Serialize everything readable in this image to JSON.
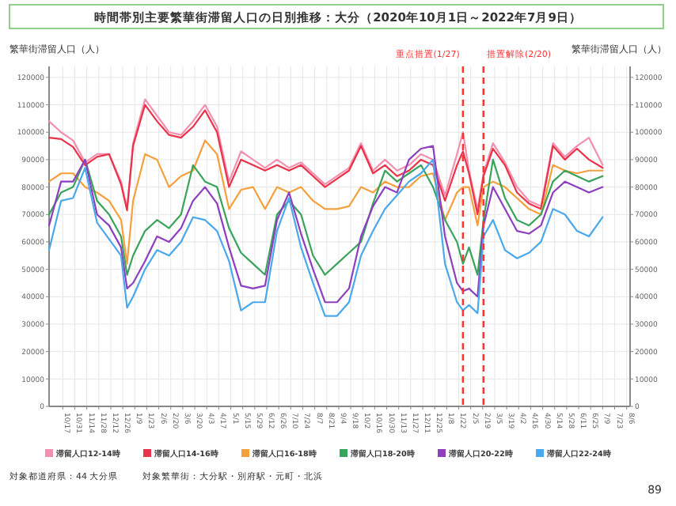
{
  "chart_data": {
    "type": "line",
    "title": "時間帯別主要繁華街滞留人口の日別推移：大分（2020年10月1日～2022年7月9日）",
    "ylabel": "繁華街滞留人口（人）",
    "y2label": "繁華街滞留人口（人）",
    "x": [
      "2020-10-01",
      "2020-10-15",
      "2020-10-29",
      "2020-11-12",
      "2020-11-26",
      "2020-12-10",
      "2020-12-24",
      "2020-12-31",
      "2021-01-07",
      "2021-01-21",
      "2021-02-04",
      "2021-02-18",
      "2021-03-04",
      "2021-03-18",
      "2021-04-01",
      "2021-04-15",
      "2021-04-29",
      "2021-05-13",
      "2021-05-27",
      "2021-06-10",
      "2021-06-24",
      "2021-07-08",
      "2021-07-22",
      "2021-08-05",
      "2021-08-19",
      "2021-09-02",
      "2021-09-16",
      "2021-09-30",
      "2021-10-14",
      "2021-10-28",
      "2021-11-11",
      "2021-11-25",
      "2021-12-09",
      "2021-12-23",
      "2022-01-06",
      "2022-01-20",
      "2022-01-27",
      "2022-02-03",
      "2022-02-13",
      "2022-02-20",
      "2022-03-03",
      "2022-03-17",
      "2022-03-31",
      "2022-04-14",
      "2022-04-28",
      "2022-05-12",
      "2022-05-26",
      "2022-06-09",
      "2022-06-23",
      "2022-07-09"
    ],
    "series": [
      {
        "name": "滞留人口12-14時",
        "color": "#f58fb0",
        "values": [
          104000,
          100000,
          97000,
          89000,
          92000,
          92000,
          82000,
          72000,
          96000,
          112000,
          106000,
          100000,
          99000,
          104000,
          110000,
          102000,
          82000,
          93000,
          90000,
          87000,
          90000,
          87000,
          89000,
          85000,
          81000,
          84000,
          87000,
          96000,
          86000,
          90000,
          86000,
          88000,
          92000,
          90000,
          77000,
          92000,
          100000,
          86000,
          72000,
          85000,
          96000,
          89000,
          80000,
          75000,
          73000,
          96000,
          91000,
          95000,
          98000,
          88000
        ]
      },
      {
        "name": "滞留人口14-16時",
        "color": "#e8334a",
        "values": [
          98000,
          97500,
          94600,
          88000,
          91000,
          92000,
          81000,
          71500,
          95000,
          110000,
          104000,
          99000,
          98000,
          102000,
          108000,
          100000,
          80000,
          90000,
          88000,
          86000,
          88000,
          86000,
          88000,
          84000,
          80000,
          83000,
          86000,
          95000,
          85000,
          88000,
          84000,
          86000,
          90000,
          88000,
          75000,
          88000,
          93000,
          85000,
          70000,
          84000,
          94000,
          88000,
          78000,
          74000,
          72000,
          95000,
          90000,
          94000,
          90000,
          87000
        ]
      },
      {
        "name": "滞留人口16-18時",
        "color": "#f5a03c",
        "values": [
          82000,
          85000,
          85000,
          80000,
          78000,
          75000,
          68000,
          52000,
          75000,
          92000,
          90000,
          80000,
          84000,
          86000,
          97000,
          92000,
          72000,
          79000,
          80000,
          72000,
          80000,
          78000,
          80000,
          75000,
          72000,
          72000,
          73000,
          80000,
          78000,
          82000,
          80000,
          80000,
          84000,
          85000,
          68000,
          78000,
          80000,
          80000,
          66000,
          80000,
          82000,
          80000,
          76000,
          72000,
          70000,
          88000,
          86000,
          85000,
          86000,
          86000
        ]
      },
      {
        "name": "滞留人口18-20時",
        "color": "#3aa35b",
        "values": [
          70000,
          78000,
          80000,
          90000,
          75000,
          70000,
          62000,
          48000,
          55000,
          64000,
          68000,
          65000,
          70000,
          88000,
          82000,
          80000,
          65000,
          56000,
          52000,
          48000,
          70000,
          75000,
          70000,
          55000,
          48000,
          52000,
          56000,
          60000,
          74000,
          86000,
          82000,
          85000,
          88000,
          80000,
          68000,
          60000,
          52000,
          58000,
          48000,
          68000,
          90000,
          76000,
          68000,
          66000,
          70000,
          82000,
          86000,
          84000,
          82000,
          84000
        ]
      },
      {
        "name": "滞留人口20-22時",
        "color": "#8e3fbf",
        "values": [
          66000,
          82000,
          82000,
          90000,
          70000,
          66000,
          58000,
          43000,
          45000,
          53000,
          62000,
          60000,
          65000,
          75000,
          80000,
          74000,
          58000,
          44000,
          43000,
          44000,
          68000,
          78000,
          63000,
          50000,
          38000,
          38000,
          43000,
          62000,
          73000,
          80000,
          78000,
          90000,
          94000,
          95000,
          62000,
          45000,
          42000,
          43000,
          40000,
          66000,
          80000,
          72000,
          64000,
          63000,
          66000,
          78000,
          82000,
          80000,
          78000,
          80000
        ]
      },
      {
        "name": "滞留人口22-24時",
        "color": "#4aa8ec",
        "values": [
          57000,
          75000,
          76000,
          87000,
          67000,
          61000,
          55000,
          36000,
          40000,
          50000,
          57000,
          55000,
          60000,
          69000,
          68000,
          64000,
          53000,
          35000,
          38000,
          38000,
          64000,
          76000,
          58000,
          45000,
          33000,
          33000,
          38000,
          55000,
          64000,
          72000,
          77000,
          82000,
          85000,
          90000,
          52000,
          38000,
          35000,
          37000,
          34000,
          62000,
          68000,
          57000,
          54000,
          56000,
          60000,
          72000,
          70000,
          64000,
          62000,
          69000
        ]
      }
    ],
    "xlim": [
      "2020-10-01",
      "2022-08-10"
    ],
    "xticks": [
      {
        "value": "2020-10-17",
        "label": "10/17"
      },
      {
        "value": "2020-10-31",
        "label": "10/31"
      },
      {
        "value": "2020-11-14",
        "label": "11/14"
      },
      {
        "value": "2020-11-28",
        "label": "11/28"
      },
      {
        "value": "2020-12-12",
        "label": "12/12"
      },
      {
        "value": "2020-12-26",
        "label": "12/26"
      },
      {
        "value": "2021-01-09",
        "label": "1/9"
      },
      {
        "value": "2021-01-23",
        "label": "1/23"
      },
      {
        "value": "2021-02-06",
        "label": "2/6"
      },
      {
        "value": "2021-02-20",
        "label": "2/20"
      },
      {
        "value": "2021-03-06",
        "label": "3/6"
      },
      {
        "value": "2021-03-20",
        "label": "3/20"
      },
      {
        "value": "2021-04-03",
        "label": "4/3"
      },
      {
        "value": "2021-04-17",
        "label": "4/17"
      },
      {
        "value": "2021-05-01",
        "label": "5/1"
      },
      {
        "value": "2021-05-15",
        "label": "5/15"
      },
      {
        "value": "2021-05-29",
        "label": "5/29"
      },
      {
        "value": "2021-06-12",
        "label": "6/12"
      },
      {
        "value": "2021-06-26",
        "label": "6/26"
      },
      {
        "value": "2021-07-10",
        "label": "7/10"
      },
      {
        "value": "2021-07-24",
        "label": "7/24"
      },
      {
        "value": "2021-08-07",
        "label": "8/7"
      },
      {
        "value": "2021-08-21",
        "label": "8/21"
      },
      {
        "value": "2021-09-04",
        "label": "9/4"
      },
      {
        "value": "2021-09-18",
        "label": "9/18"
      },
      {
        "value": "2021-10-02",
        "label": "10/2"
      },
      {
        "value": "2021-10-16",
        "label": "10/16"
      },
      {
        "value": "2021-10-30",
        "label": "10/30"
      },
      {
        "value": "2021-11-13",
        "label": "11/13"
      },
      {
        "value": "2021-11-27",
        "label": "11/27"
      },
      {
        "value": "2021-12-11",
        "label": "12/11"
      },
      {
        "value": "2021-12-25",
        "label": "12/25"
      },
      {
        "value": "2022-01-08",
        "label": "1/8"
      },
      {
        "value": "2022-01-22",
        "label": "1/22"
      },
      {
        "value": "2022-02-05",
        "label": "2/5"
      },
      {
        "value": "2022-02-19",
        "label": "2/19"
      },
      {
        "value": "2022-03-05",
        "label": "3/5"
      },
      {
        "value": "2022-03-19",
        "label": "3/19"
      },
      {
        "value": "2022-04-02",
        "label": "4/2"
      },
      {
        "value": "2022-04-16",
        "label": "4/16"
      },
      {
        "value": "2022-04-30",
        "label": "4/30"
      },
      {
        "value": "2022-05-14",
        "label": "5/14"
      },
      {
        "value": "2022-05-28",
        "label": "5/28"
      },
      {
        "value": "2022-06-11",
        "label": "6/11"
      },
      {
        "value": "2022-06-25",
        "label": "6/25"
      },
      {
        "value": "2022-07-09",
        "label": "7/9"
      },
      {
        "value": "2022-07-23",
        "label": "7/23"
      },
      {
        "value": "2022-08-06",
        "label": "8/6"
      }
    ],
    "ylim": [
      0,
      124000
    ],
    "yticks": [
      0,
      10000,
      20000,
      30000,
      40000,
      50000,
      60000,
      70000,
      80000,
      90000,
      100000,
      110000,
      120000
    ],
    "y2lim": [
      0,
      124000
    ],
    "y2ticks": [
      0,
      10000,
      20000,
      30000,
      40000,
      50000,
      60000,
      70000,
      80000,
      90000,
      100000,
      110000,
      120000
    ],
    "ref_lines": [
      {
        "axis": "x",
        "value": "2022-01-27",
        "label": "重点措置(1/27)",
        "color": "#ff3333",
        "line_style": "dashed"
      },
      {
        "axis": "x",
        "value": "2022-02-20",
        "label": "措置解除(2/20)",
        "color": "#ff3333",
        "line_style": "dashed"
      }
    ],
    "grid": true,
    "legend": "bottom",
    "annotations": [
      "対象都道府県：44 大分県",
      "対象繁華街：大分駅・別府駅・元町・北浜",
      "89"
    ]
  }
}
